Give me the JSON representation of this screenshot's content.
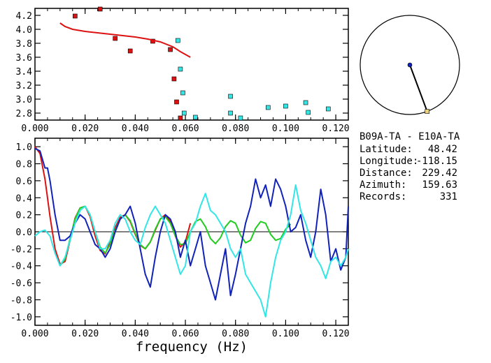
{
  "station_pair": "B09A-TA  -  E10A-TA",
  "info": [
    {
      "label": "Latitude:",
      "value": "48.42"
    },
    {
      "label": "Longitude:",
      "value": "-118.15"
    },
    {
      "label": "Distance:",
      "value": "229.42"
    },
    {
      "label": "Azimuth:",
      "value": "159.63"
    },
    {
      "label": "Records:",
      "value": "331"
    }
  ],
  "colors": {
    "red": "#dd1111",
    "cyan": "#33e6e6",
    "blue": "#1122bb",
    "green": "#22cc22",
    "axis": "#000000"
  },
  "chart_data": [
    {
      "type": "scatter",
      "title": "",
      "xlabel": "",
      "ylabel": "",
      "xlim": [
        0.0,
        0.125
      ],
      "ylim": [
        2.7,
        4.3
      ],
      "x_ticks": [
        "0.000",
        "0.020",
        "0.040",
        "0.060",
        "0.080",
        "0.100",
        "0.120"
      ],
      "y_ticks": [
        "2.8",
        "3.0",
        "3.2",
        "3.4",
        "3.6",
        "3.8",
        "4.0",
        "4.2"
      ],
      "series": [
        {
          "color": "red",
          "marker": "square",
          "points": [
            [
              0.016,
              4.19
            ],
            [
              0.026,
              4.29
            ],
            [
              0.032,
              3.87
            ],
            [
              0.038,
              3.69
            ],
            [
              0.047,
              3.83
            ],
            [
              0.054,
              3.71
            ],
            [
              0.0555,
              3.29
            ],
            [
              0.0565,
              2.96
            ],
            [
              0.058,
              2.73
            ]
          ]
        },
        {
          "color": "cyan",
          "marker": "square",
          "points": [
            [
              0.057,
              3.84
            ],
            [
              0.058,
              3.43
            ],
            [
              0.059,
              3.09
            ],
            [
              0.0595,
              2.8
            ],
            [
              0.064,
              2.74
            ],
            [
              0.078,
              3.04
            ],
            [
              0.078,
              2.8
            ],
            [
              0.082,
              2.73
            ],
            [
              0.093,
              2.88
            ],
            [
              0.1,
              2.9
            ],
            [
              0.108,
              2.95
            ],
            [
              0.109,
              2.81
            ],
            [
              0.117,
              2.86
            ]
          ]
        },
        {
          "color": "red",
          "marker": "line",
          "points": [
            [
              0.01,
              4.09
            ],
            [
              0.012,
              4.04
            ],
            [
              0.015,
              4.0
            ],
            [
              0.02,
              3.97
            ],
            [
              0.03,
              3.93
            ],
            [
              0.04,
              3.89
            ],
            [
              0.045,
              3.86
            ],
            [
              0.05,
              3.82
            ],
            [
              0.055,
              3.75
            ],
            [
              0.058,
              3.68
            ],
            [
              0.062,
              3.6
            ]
          ]
        }
      ]
    },
    {
      "type": "line",
      "title": "",
      "xlabel": "frequency (Hz)",
      "ylabel": "",
      "xlim": [
        0.0,
        0.125
      ],
      "ylim": [
        -1.1,
        1.1
      ],
      "x_ticks": [
        "0.000",
        "0.020",
        "0.040",
        "0.060",
        "0.080",
        "0.100",
        "0.120"
      ],
      "y_ticks": [
        "1.0",
        "0.8",
        "0.6",
        "0.4",
        "0.2",
        "0.0",
        "-0.2",
        "-0.4",
        "-0.6",
        "-0.8",
        "-1.0"
      ],
      "series": [
        {
          "color": "red",
          "x": [
            0.0,
            0.002,
            0.004,
            0.006,
            0.008,
            0.01,
            0.012,
            0.014,
            0.016,
            0.018,
            0.02,
            0.022,
            0.024,
            0.026,
            0.028,
            0.03,
            0.032,
            0.034,
            0.036,
            0.038,
            0.04,
            0.042,
            0.044,
            0.046,
            0.048,
            0.05,
            0.052,
            0.054,
            0.056,
            0.058,
            0.06,
            0.062
          ],
          "y": [
            1.0,
            0.92,
            0.62,
            0.18,
            -0.2,
            -0.38,
            -0.35,
            -0.1,
            0.16,
            0.28,
            0.3,
            0.18,
            -0.05,
            -0.22,
            -0.26,
            -0.12,
            0.05,
            0.17,
            0.2,
            0.12,
            -0.03,
            -0.16,
            -0.2,
            -0.12,
            0.02,
            0.15,
            0.2,
            0.12,
            -0.05,
            -0.18,
            -0.12,
            0.1
          ]
        },
        {
          "color": "green",
          "x": [
            0.01,
            0.012,
            0.014,
            0.016,
            0.018,
            0.02,
            0.022,
            0.024,
            0.026,
            0.028,
            0.03,
            0.032,
            0.034,
            0.036,
            0.038,
            0.04,
            0.042,
            0.044,
            0.046,
            0.048,
            0.05,
            0.052,
            0.054,
            0.056,
            0.058,
            0.06,
            0.062,
            0.064,
            0.066,
            0.068,
            0.07,
            0.072,
            0.074,
            0.076,
            0.078,
            0.08,
            0.082,
            0.084,
            0.086,
            0.088,
            0.09,
            0.092,
            0.094,
            0.096,
            0.098,
            0.1,
            0.102
          ],
          "y": [
            -0.4,
            -0.32,
            -0.08,
            0.15,
            0.28,
            0.3,
            0.2,
            0.0,
            -0.18,
            -0.25,
            -0.15,
            0.02,
            0.15,
            0.2,
            0.13,
            -0.02,
            -0.15,
            -0.2,
            -0.12,
            0.03,
            0.15,
            0.18,
            0.1,
            -0.05,
            -0.15,
            -0.14,
            0.0,
            0.12,
            0.15,
            0.06,
            -0.08,
            -0.14,
            -0.07,
            0.06,
            0.13,
            0.1,
            -0.04,
            -0.13,
            -0.1,
            0.04,
            0.12,
            0.1,
            -0.03,
            -0.1,
            -0.08,
            0.03,
            0.09
          ]
        },
        {
          "color": "blue",
          "x": [
            0.0,
            0.002,
            0.004,
            0.005,
            0.006,
            0.008,
            0.01,
            0.012,
            0.014,
            0.016,
            0.018,
            0.02,
            0.022,
            0.024,
            0.026,
            0.028,
            0.03,
            0.032,
            0.034,
            0.036,
            0.038,
            0.04,
            0.042,
            0.044,
            0.046,
            0.048,
            0.05,
            0.052,
            0.054,
            0.056,
            0.058,
            0.06,
            0.062,
            0.064,
            0.066,
            0.068,
            0.07,
            0.072,
            0.074,
            0.076,
            0.078,
            0.08,
            0.082,
            0.084,
            0.086,
            0.088,
            0.09,
            0.092,
            0.094,
            0.096,
            0.098,
            0.1,
            0.102,
            0.104,
            0.106,
            0.108,
            0.11,
            0.112,
            0.114,
            0.116,
            0.118,
            0.12,
            0.122,
            0.124,
            0.125
          ],
          "y": [
            0.98,
            0.95,
            0.75,
            0.75,
            0.6,
            0.2,
            -0.1,
            -0.1,
            -0.05,
            0.1,
            0.2,
            0.15,
            0.0,
            -0.15,
            -0.2,
            -0.3,
            -0.2,
            0.0,
            0.15,
            0.2,
            0.3,
            0.1,
            -0.2,
            -0.5,
            -0.65,
            -0.3,
            0.0,
            0.2,
            0.15,
            0.0,
            -0.3,
            -0.1,
            -0.4,
            -0.2,
            0.0,
            -0.4,
            -0.6,
            -0.8,
            -0.5,
            -0.2,
            -0.75,
            -0.5,
            -0.2,
            0.1,
            0.3,
            0.62,
            0.4,
            0.55,
            0.3,
            0.62,
            0.5,
            0.3,
            0.0,
            0.05,
            0.2,
            -0.1,
            -0.3,
            0.0,
            0.5,
            0.2,
            -0.35,
            -0.2,
            -0.45,
            -0.3,
            0.3
          ]
        },
        {
          "color": "cyan",
          "x": [
            0.0,
            0.002,
            0.004,
            0.006,
            0.008,
            0.01,
            0.012,
            0.014,
            0.016,
            0.018,
            0.02,
            0.022,
            0.024,
            0.026,
            0.028,
            0.03,
            0.032,
            0.034,
            0.036,
            0.038,
            0.04,
            0.042,
            0.044,
            0.046,
            0.048,
            0.05,
            0.052,
            0.054,
            0.056,
            0.058,
            0.06,
            0.062,
            0.064,
            0.066,
            0.068,
            0.07,
            0.072,
            0.074,
            0.076,
            0.078,
            0.08,
            0.082,
            0.084,
            0.086,
            0.088,
            0.09,
            0.092,
            0.094,
            0.096,
            0.098,
            0.1,
            0.102,
            0.104,
            0.106,
            0.108,
            0.11,
            0.112,
            0.114,
            0.116,
            0.118,
            0.12,
            0.122,
            0.124,
            0.125
          ],
          "y": [
            -0.05,
            0.0,
            0.02,
            -0.05,
            -0.25,
            -0.4,
            -0.3,
            -0.1,
            0.1,
            0.25,
            0.3,
            0.2,
            0.0,
            -0.2,
            -0.2,
            -0.1,
            0.1,
            0.2,
            0.15,
            0.0,
            -0.1,
            -0.15,
            0.05,
            0.2,
            0.3,
            0.2,
            0.1,
            -0.1,
            -0.3,
            -0.5,
            -0.4,
            0.0,
            0.1,
            0.3,
            0.45,
            0.25,
            0.2,
            0.1,
            0.0,
            -0.2,
            -0.3,
            -0.2,
            -0.5,
            -0.6,
            -0.7,
            -0.8,
            -1.0,
            -0.6,
            -0.3,
            -0.1,
            0.0,
            0.2,
            0.55,
            0.25,
            0.1,
            -0.1,
            -0.3,
            -0.4,
            -0.55,
            -0.35,
            -0.3,
            -0.4,
            -0.3,
            -0.2
          ]
        }
      ]
    },
    {
      "type": "other",
      "shape": "circle-azimuth",
      "azimuth_deg": 159.63
    }
  ]
}
